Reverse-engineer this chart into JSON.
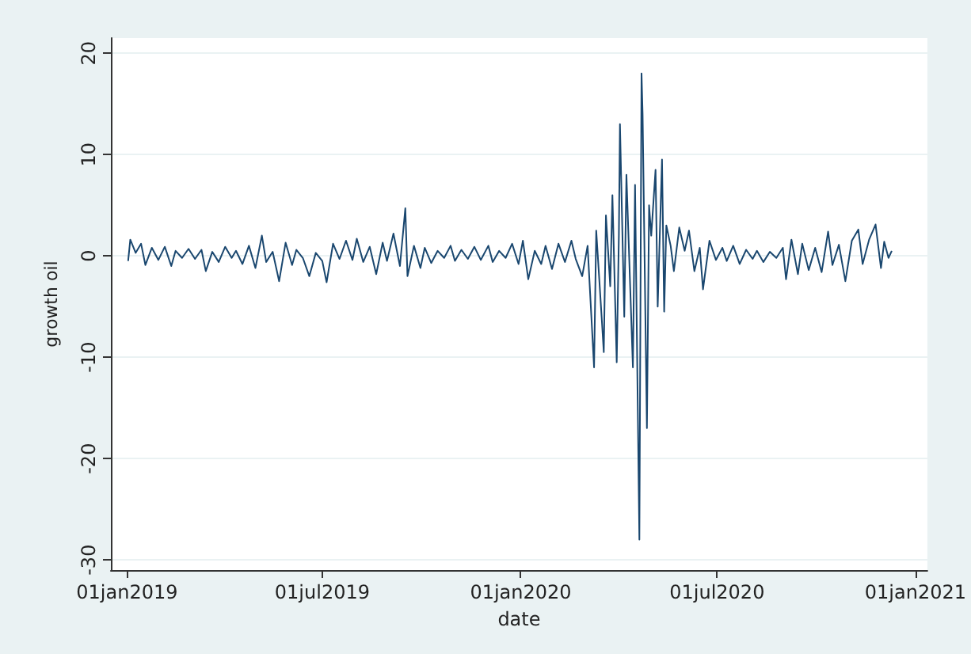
{
  "chart_data": {
    "type": "line",
    "xlabel": "date",
    "ylabel": "growth oil",
    "grid": "y",
    "marker": "none",
    "line_style": "solid",
    "xlim": [
      "2018-12-17",
      "2021-01-12"
    ],
    "ylim": [
      -31,
      21.5
    ],
    "xticks": [
      {
        "value": "2019-01-01",
        "label": "01jan2019"
      },
      {
        "value": "2019-07-01",
        "label": "01jul2019"
      },
      {
        "value": "2020-01-01",
        "label": "01jan2020"
      },
      {
        "value": "2020-07-01",
        "label": "01jul2020"
      },
      {
        "value": "2021-01-01",
        "label": "01jan2021"
      }
    ],
    "yticks": [
      -30,
      -20,
      -10,
      0,
      10,
      20
    ],
    "series": [
      {
        "color": "#1a476f",
        "x": [
          "2019-01-02",
          "2019-01-04",
          "2019-01-09",
          "2019-01-14",
          "2019-01-18",
          "2019-01-24",
          "2019-01-30",
          "2019-02-05",
          "2019-02-11",
          "2019-02-15",
          "2019-02-21",
          "2019-02-27",
          "2019-03-05",
          "2019-03-11",
          "2019-03-15",
          "2019-03-21",
          "2019-03-27",
          "2019-04-02",
          "2019-04-08",
          "2019-04-12",
          "2019-04-18",
          "2019-04-24",
          "2019-04-30",
          "2019-05-06",
          "2019-05-10",
          "2019-05-16",
          "2019-05-22",
          "2019-05-28",
          "2019-06-03",
          "2019-06-07",
          "2019-06-13",
          "2019-06-19",
          "2019-06-25",
          "2019-07-01",
          "2019-07-05",
          "2019-07-11",
          "2019-07-17",
          "2019-07-23",
          "2019-07-29",
          "2019-08-02",
          "2019-08-08",
          "2019-08-14",
          "2019-08-20",
          "2019-08-26",
          "2019-08-30",
          "2019-09-05",
          "2019-09-11",
          "2019-09-16",
          "2019-09-18",
          "2019-09-24",
          "2019-09-30",
          "2019-10-04",
          "2019-10-10",
          "2019-10-16",
          "2019-10-22",
          "2019-10-28",
          "2019-11-01",
          "2019-11-07",
          "2019-11-13",
          "2019-11-19",
          "2019-11-25",
          "2019-12-02",
          "2019-12-06",
          "2019-12-12",
          "2019-12-18",
          "2019-12-24",
          "2019-12-30",
          "2020-01-03",
          "2020-01-08",
          "2020-01-14",
          "2020-01-20",
          "2020-01-24",
          "2020-01-30",
          "2020-02-05",
          "2020-02-11",
          "2020-02-17",
          "2020-02-21",
          "2020-02-27",
          "2020-03-03",
          "2020-03-06",
          "2020-03-09",
          "2020-03-11",
          "2020-03-16",
          "2020-03-18",
          "2020-03-20",
          "2020-03-24",
          "2020-03-26",
          "2020-03-30",
          "2020-04-01",
          "2020-04-02",
          "2020-04-06",
          "2020-04-08",
          "2020-04-14",
          "2020-04-16",
          "2020-04-20",
          "2020-04-22",
          "2020-04-23",
          "2020-04-27",
          "2020-04-29",
          "2020-05-01",
          "2020-05-05",
          "2020-05-07",
          "2020-05-11",
          "2020-05-13",
          "2020-05-15",
          "2020-05-19",
          "2020-05-22",
          "2020-05-27",
          "2020-06-01",
          "2020-06-05",
          "2020-06-10",
          "2020-06-15",
          "2020-06-18",
          "2020-06-24",
          "2020-06-30",
          "2020-07-06",
          "2020-07-10",
          "2020-07-16",
          "2020-07-22",
          "2020-07-28",
          "2020-08-03",
          "2020-08-07",
          "2020-08-13",
          "2020-08-19",
          "2020-08-25",
          "2020-08-31",
          "2020-09-03",
          "2020-09-08",
          "2020-09-14",
          "2020-09-18",
          "2020-09-24",
          "2020-09-30",
          "2020-10-06",
          "2020-10-12",
          "2020-10-16",
          "2020-10-22",
          "2020-10-28",
          "2020-11-03",
          "2020-11-09",
          "2020-11-13",
          "2020-11-19",
          "2020-11-25",
          "2020-11-30",
          "2020-12-03",
          "2020-12-07",
          "2020-12-10"
        ],
        "values": [
          -0.5,
          1.6,
          0.3,
          1.2,
          -0.9,
          0.8,
          -0.4,
          0.9,
          -1.0,
          0.5,
          -0.2,
          0.7,
          -0.3,
          0.6,
          -1.5,
          0.4,
          -0.6,
          0.9,
          -0.2,
          0.5,
          -0.8,
          1.0,
          -1.2,
          2.0,
          -0.6,
          0.4,
          -2.5,
          1.3,
          -0.9,
          0.6,
          -0.2,
          -2.0,
          0.3,
          -0.5,
          -2.6,
          1.2,
          -0.3,
          1.5,
          -0.4,
          1.7,
          -0.6,
          0.9,
          -1.8,
          1.3,
          -0.5,
          2.2,
          -1.0,
          4.7,
          -2.0,
          1.0,
          -1.2,
          0.8,
          -0.7,
          0.5,
          -0.2,
          1.0,
          -0.5,
          0.6,
          -0.3,
          0.9,
          -0.4,
          1.0,
          -0.6,
          0.5,
          -0.2,
          1.2,
          -0.8,
          1.5,
          -2.3,
          0.5,
          -0.8,
          1.0,
          -1.3,
          1.2,
          -0.6,
          1.5,
          -0.3,
          -2.0,
          1.0,
          -5.0,
          -11.0,
          2.5,
          -6.0,
          -9.5,
          4.0,
          -3.0,
          6.0,
          -10.5,
          2.0,
          13.0,
          -6.0,
          8.0,
          -11.0,
          7.0,
          -28.0,
          18.0,
          14.0,
          -17.0,
          5.0,
          2.0,
          8.5,
          -5.0,
          9.5,
          -5.5,
          3.0,
          1.0,
          -1.5,
          2.8,
          0.5,
          2.5,
          -1.5,
          0.8,
          -3.3,
          1.5,
          -0.4,
          0.8,
          -0.5,
          1.0,
          -0.8,
          0.6,
          -0.3,
          0.5,
          -0.6,
          0.4,
          -0.2,
          0.8,
          -2.3,
          1.6,
          -1.8,
          1.2,
          -1.4,
          0.8,
          -1.6,
          2.4,
          -0.9,
          1.1,
          -2.5,
          1.5,
          2.6,
          -0.8,
          1.6,
          3.1,
          -1.2,
          1.4,
          -0.2,
          0.5
        ]
      }
    ]
  }
}
